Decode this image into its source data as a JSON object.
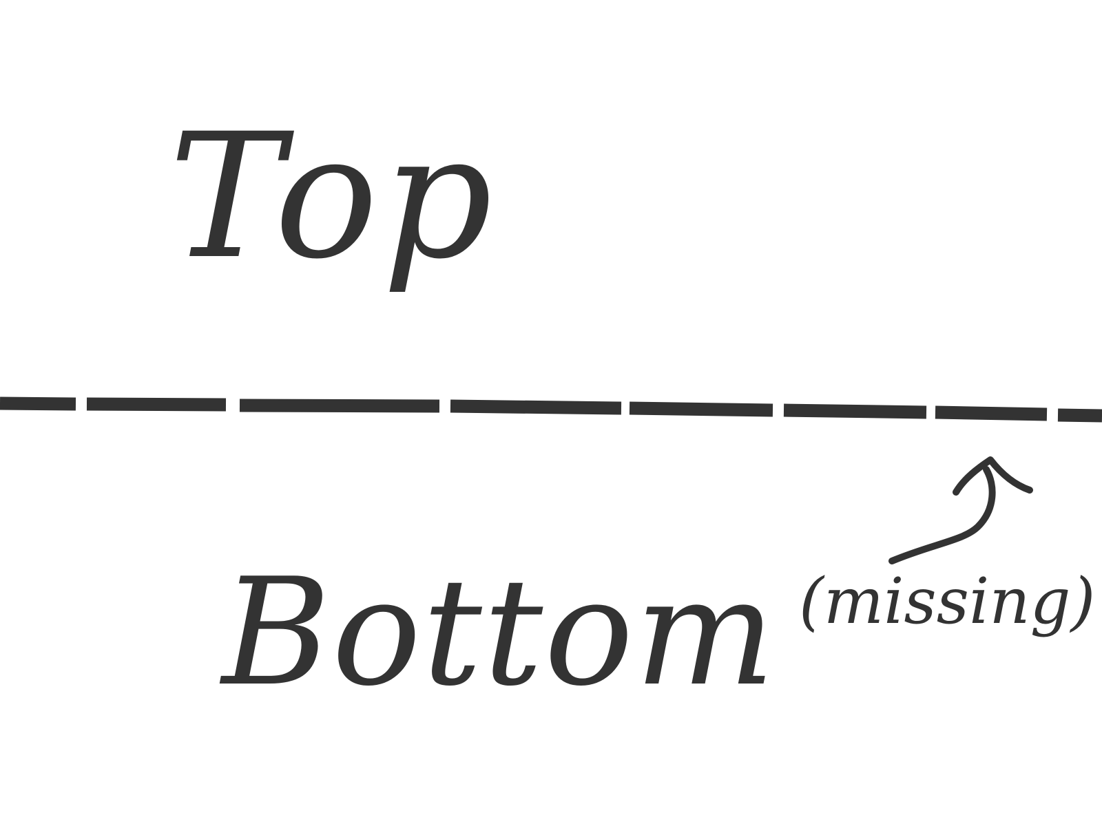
{
  "labels": {
    "top": "Top",
    "bottom": "Bottom",
    "missing": "(missing)"
  },
  "divider": {
    "style": "dashed",
    "segments": 10
  },
  "arrow": {
    "points_to": "divider",
    "from": "missing-label"
  },
  "colors": {
    "ink": "#333333",
    "background": "#ffffff"
  }
}
